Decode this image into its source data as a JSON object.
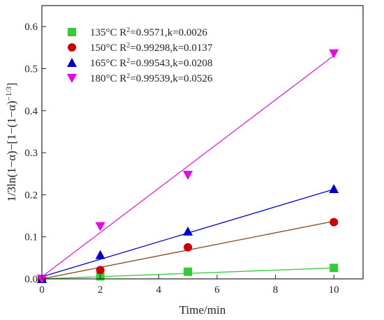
{
  "chart_data": {
    "type": "scatter",
    "xlabel": "Time/min",
    "ylabel": {
      "base": "1/3ln(1−α)−[1−(1−α)",
      "exponent": "−1/3",
      "close": "]"
    },
    "xlim": [
      0,
      11
    ],
    "ylim": [
      0,
      0.65
    ],
    "x_ticks": [
      0,
      2,
      4,
      6,
      8,
      10
    ],
    "y_ticks": [
      0.0,
      0.1,
      0.2,
      0.3,
      0.4,
      0.5,
      0.6
    ],
    "y_tick_labels": [
      "0.0",
      "0.1",
      "0.2",
      "0.3",
      "0.4",
      "0.5",
      "0.6"
    ],
    "legend_position": "top-left",
    "series": [
      {
        "name": "135°C R²=0.9571,k=0.0026",
        "legend": {
          "temp": "135°C R",
          "sup": "2",
          "rest": "=0.9571,k=0.0026"
        },
        "marker": "square",
        "color": "#33cc33",
        "line_color": "#33cc33",
        "x": [
          0,
          2,
          5,
          10
        ],
        "y": [
          0.0,
          0.006,
          0.017,
          0.026
        ],
        "fit": {
          "slope": 0.0026,
          "intercept": 0
        }
      },
      {
        "name": "150°C R²=0.99298,k=0.0137",
        "legend": {
          "temp": "150°C R",
          "sup": "2",
          "rest": "=0.99298,k=0.0137"
        },
        "marker": "circle",
        "color": "#cc0000",
        "line_color": "#8b4513",
        "x": [
          0,
          2,
          5,
          10
        ],
        "y": [
          0.0,
          0.021,
          0.075,
          0.135
        ],
        "fit": {
          "slope": 0.0137,
          "intercept": 0
        }
      },
      {
        "name": "165°C R²=0.99543,k=0.0208",
        "legend": {
          "temp": "165°C R",
          "sup": "2",
          "rest": "=0.99543,k=0.0208"
        },
        "marker": "triangle-up",
        "color": "#0000cc",
        "line_color": "#0000cc",
        "x": [
          0,
          2,
          5,
          10
        ],
        "y": [
          0.0,
          0.057,
          0.113,
          0.214
        ],
        "fit": {
          "slope": 0.0208,
          "intercept": 0.005
        }
      },
      {
        "name": "180°C R²=0.99539,k=0.0526",
        "legend": {
          "temp": "180°C R",
          "sup": "2",
          "rest": "=0.99539,k=0.0526"
        },
        "marker": "triangle-down",
        "color": "#ee00ee",
        "line_color": "#dd22dd",
        "x": [
          0,
          2,
          5,
          10
        ],
        "y": [
          0.0,
          0.125,
          0.247,
          0.536
        ],
        "fit": {
          "slope": 0.0526,
          "intercept": 0.005
        }
      }
    ]
  }
}
